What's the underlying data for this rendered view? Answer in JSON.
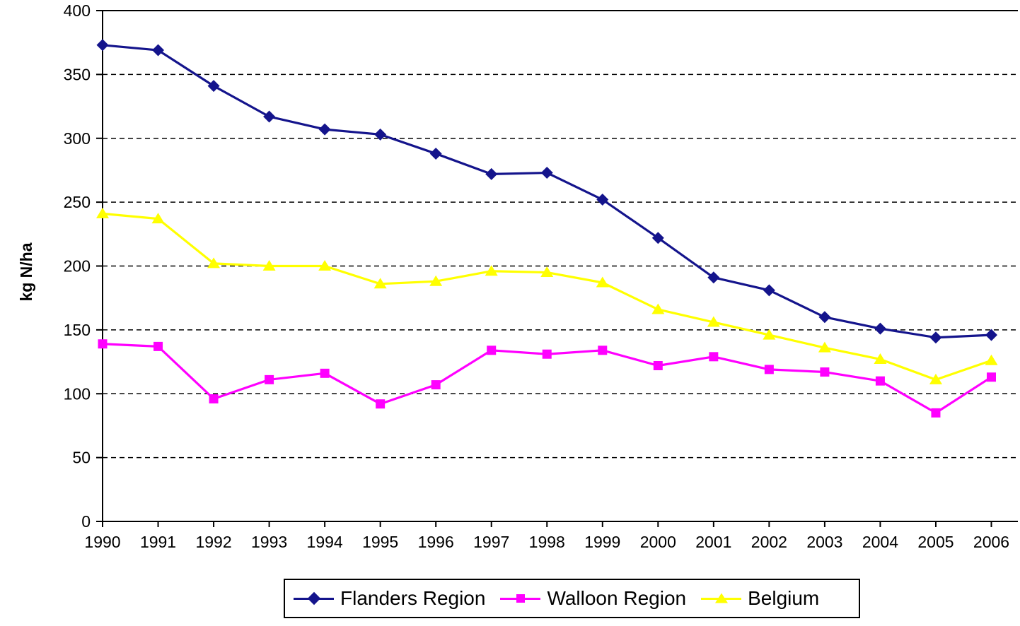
{
  "chart_data": {
    "type": "line",
    "title": "",
    "xlabel": "",
    "ylabel": "kg N/ha",
    "x": [
      "1990",
      "1991",
      "1992",
      "1993",
      "1994",
      "1995",
      "1996",
      "1997",
      "1998",
      "1999",
      "2000",
      "2001",
      "2002",
      "2003",
      "2004",
      "2005",
      "2006"
    ],
    "ylim": [
      0,
      400
    ],
    "yticks": [
      0,
      50,
      100,
      150,
      200,
      250,
      300,
      350,
      400
    ],
    "grid": "horizontal-dashed",
    "axis_color": "#000000",
    "background_color": "#ffffff",
    "legend_position": "bottom",
    "series": [
      {
        "name": "Flanders Region",
        "color": "#14148C",
        "marker": "diamond",
        "values": [
          373,
          369,
          341,
          317,
          307,
          303,
          288,
          272,
          273,
          252,
          222,
          191,
          181,
          160,
          151,
          144,
          146
        ]
      },
      {
        "name": "Walloon Region",
        "color": "#FF00FF",
        "marker": "square",
        "values": [
          139,
          137,
          96,
          111,
          116,
          92,
          107,
          134,
          131,
          134,
          122,
          129,
          119,
          117,
          110,
          85,
          113
        ]
      },
      {
        "name": "Belgium",
        "color": "#FFFF00",
        "marker": "triangle",
        "values": [
          241,
          237,
          202,
          200,
          200,
          186,
          188,
          196,
          195,
          187,
          166,
          156,
          146,
          136,
          127,
          111,
          126
        ]
      }
    ]
  }
}
